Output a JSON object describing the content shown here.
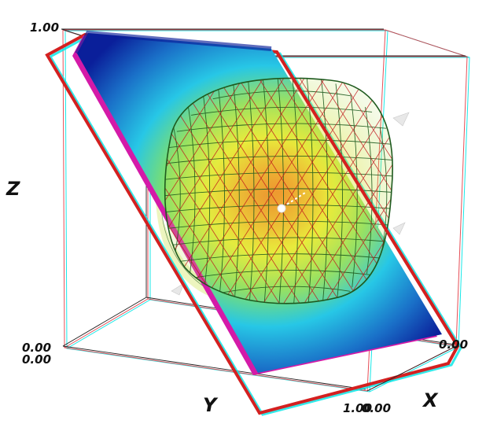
{
  "axes": {
    "x_label": "X",
    "y_label": "Y",
    "z_label": "Z",
    "z_max_tick": "1.00",
    "z_origin_tick": "0.00",
    "y_origin_tick": "0.00",
    "x_origin_tick": "0.00",
    "y_end_tick": "1.00",
    "x_end_tick": "0.00"
  },
  "colors": {
    "box_edge": "#222222",
    "anaglyph_cyan": "#00e5e5",
    "anaglyph_red": "#e0303a",
    "plane_outline": "#d42020",
    "plane_shadow_magenta": "#d41aa8",
    "plane_low": "#0a1f9a",
    "plane_mid": "#27c7e6",
    "plane_high": "#e8ef3a",
    "plane_peak": "#e0542a",
    "mesh_green": "#1e5a1e",
    "mesh_red": "#c0151b"
  },
  "scene": {
    "type": "3d-volume-slice-with-isosurface",
    "slice_colormap": "blue-cyan-yellow-red",
    "isosurface_style": "wireframe"
  }
}
